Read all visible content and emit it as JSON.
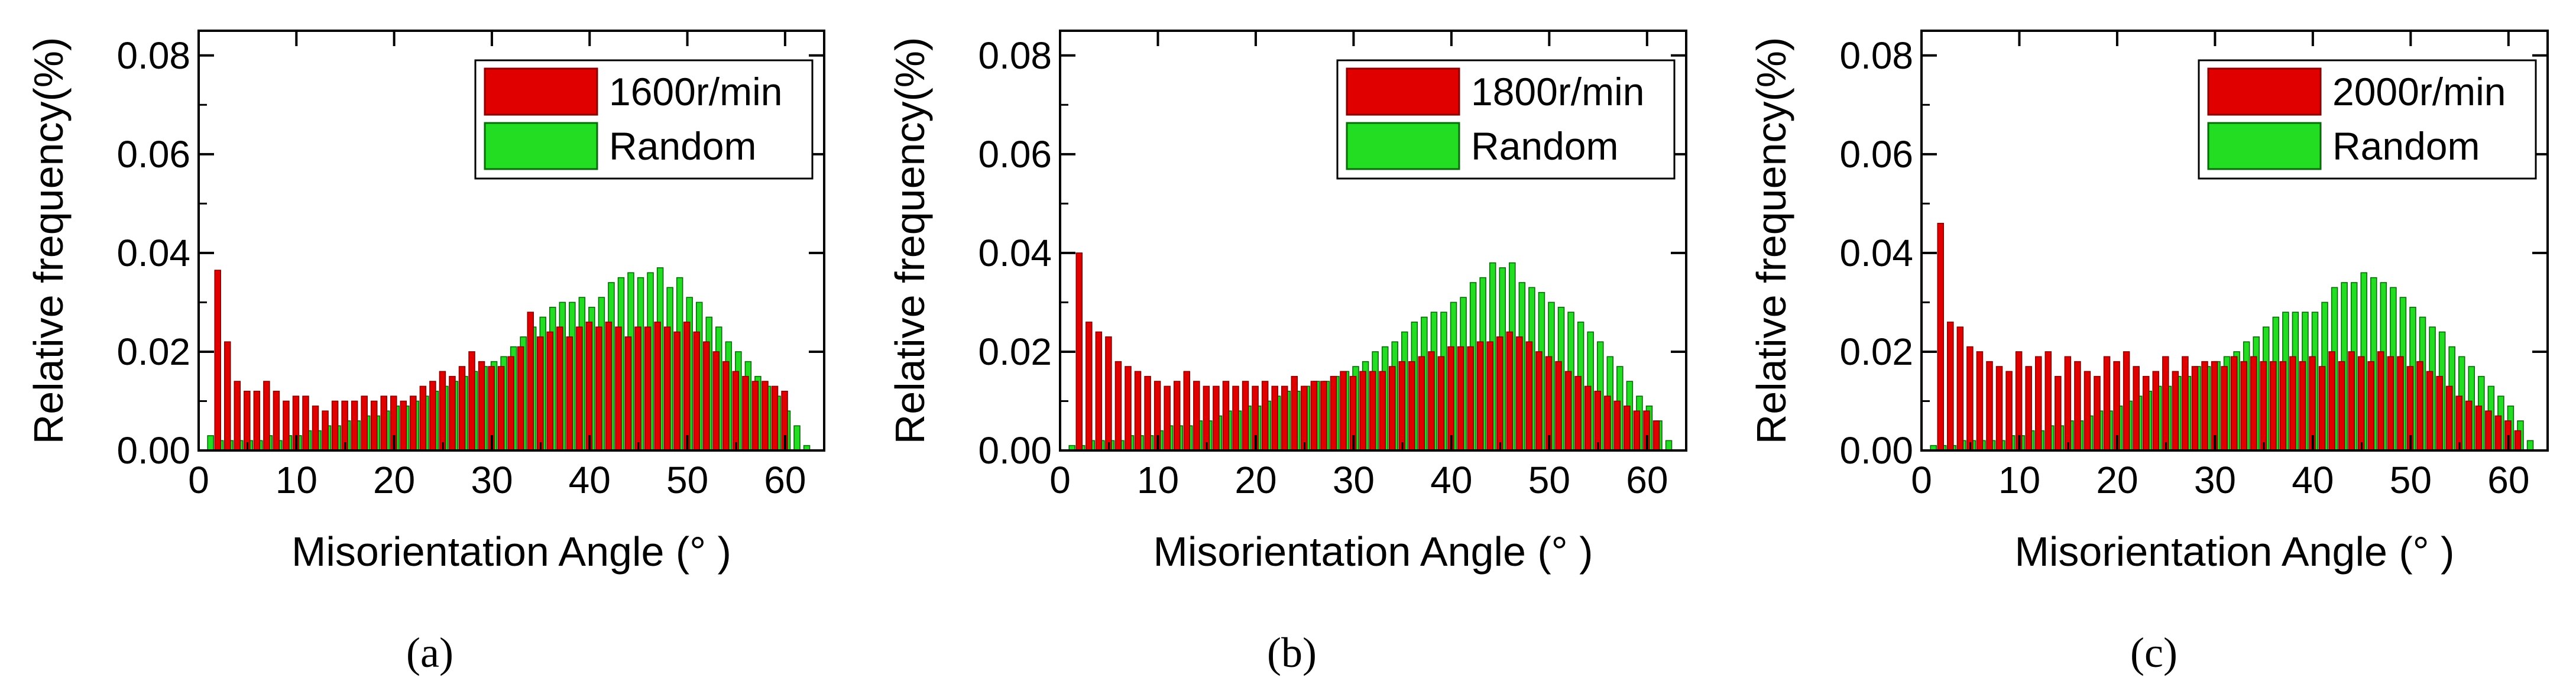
{
  "figure": {
    "panel_labels": [
      "(a)",
      "(b)",
      "(c)"
    ]
  },
  "colors": {
    "red_fill": "#e00000",
    "red_edge": "#8a0000",
    "green_fill": "#22dd22",
    "green_edge": "#0b6a0b",
    "axis": "#000000"
  },
  "chart_data": [
    {
      "type": "bar",
      "panel": "a",
      "xlabel": "Misorientation Angle (° )",
      "ylabel": "Relative frequency(%)",
      "xlim": [
        0,
        64
      ],
      "ylim": [
        0,
        0.085
      ],
      "xticks": [
        0,
        10,
        20,
        30,
        40,
        50,
        60
      ],
      "yticks": [
        0.0,
        0.02,
        0.04,
        0.06,
        0.08
      ],
      "ytick_labels": [
        "0.00",
        "0.02",
        "0.04",
        "0.06",
        "0.08"
      ],
      "bin_width": 1,
      "x": [
        1,
        2,
        3,
        4,
        5,
        6,
        7,
        8,
        9,
        10,
        11,
        12,
        13,
        14,
        15,
        16,
        17,
        18,
        19,
        20,
        21,
        22,
        23,
        24,
        25,
        26,
        27,
        28,
        29,
        30,
        31,
        32,
        33,
        34,
        35,
        36,
        37,
        38,
        39,
        40,
        41,
        42,
        43,
        44,
        45,
        46,
        47,
        48,
        49,
        50,
        51,
        52,
        53,
        54,
        55,
        56,
        57,
        58,
        59,
        60,
        61,
        62
      ],
      "legend": [
        "1600r/min",
        "Random"
      ],
      "series": [
        {
          "name": "1600r/min",
          "color": "red",
          "values": [
            0.0,
            0.0365,
            0.022,
            0.014,
            0.012,
            0.012,
            0.014,
            0.012,
            0.01,
            0.011,
            0.011,
            0.009,
            0.008,
            0.01,
            0.01,
            0.01,
            0.011,
            0.01,
            0.011,
            0.011,
            0.01,
            0.011,
            0.013,
            0.014,
            0.016,
            0.015,
            0.017,
            0.02,
            0.018,
            0.017,
            0.017,
            0.019,
            0.021,
            0.028,
            0.023,
            0.024,
            0.025,
            0.023,
            0.025,
            0.026,
            0.025,
            0.026,
            0.025,
            0.023,
            0.025,
            0.025,
            0.026,
            0.025,
            0.024,
            0.026,
            0.024,
            0.022,
            0.02,
            0.018,
            0.016,
            0.015,
            0.014,
            0.014,
            0.013,
            0.012,
            0.0,
            0.0
          ]
        },
        {
          "name": "Random",
          "color": "green",
          "values": [
            0.003,
            0.002,
            0.002,
            0.002,
            0.002,
            0.002,
            0.003,
            0.002,
            0.003,
            0.003,
            0.004,
            0.004,
            0.005,
            0.005,
            0.006,
            0.006,
            0.007,
            0.007,
            0.008,
            0.009,
            0.009,
            0.01,
            0.011,
            0.012,
            0.013,
            0.014,
            0.015,
            0.016,
            0.017,
            0.018,
            0.019,
            0.021,
            0.023,
            0.025,
            0.027,
            0.029,
            0.03,
            0.03,
            0.031,
            0.029,
            0.031,
            0.034,
            0.035,
            0.036,
            0.035,
            0.036,
            0.037,
            0.033,
            0.035,
            0.031,
            0.03,
            0.027,
            0.025,
            0.022,
            0.02,
            0.018,
            0.015,
            0.013,
            0.011,
            0.008,
            0.005,
            0.001
          ]
        }
      ]
    },
    {
      "type": "bar",
      "panel": "b",
      "xlabel": "Misorientation Angle (° )",
      "ylabel": "Relative frequency(%)",
      "xlim": [
        0,
        64
      ],
      "ylim": [
        0,
        0.085
      ],
      "xticks": [
        0,
        10,
        20,
        30,
        40,
        50,
        60
      ],
      "yticks": [
        0.0,
        0.02,
        0.04,
        0.06,
        0.08
      ],
      "ytick_labels": [
        "0.00",
        "0.02",
        "0.04",
        "0.06",
        "0.08"
      ],
      "bin_width": 1,
      "x": [
        1,
        2,
        3,
        4,
        5,
        6,
        7,
        8,
        9,
        10,
        11,
        12,
        13,
        14,
        15,
        16,
        17,
        18,
        19,
        20,
        21,
        22,
        23,
        24,
        25,
        26,
        27,
        28,
        29,
        30,
        31,
        32,
        33,
        34,
        35,
        36,
        37,
        38,
        39,
        40,
        41,
        42,
        43,
        44,
        45,
        46,
        47,
        48,
        49,
        50,
        51,
        52,
        53,
        54,
        55,
        56,
        57,
        58,
        59,
        60,
        61,
        62
      ],
      "legend": [
        "1800r/min",
        "Random"
      ],
      "series": [
        {
          "name": "1800r/min",
          "color": "red",
          "values": [
            0.0,
            0.04,
            0.026,
            0.024,
            0.023,
            0.018,
            0.017,
            0.016,
            0.015,
            0.014,
            0.013,
            0.014,
            0.016,
            0.014,
            0.013,
            0.013,
            0.014,
            0.013,
            0.014,
            0.013,
            0.014,
            0.013,
            0.013,
            0.015,
            0.013,
            0.014,
            0.014,
            0.015,
            0.016,
            0.015,
            0.016,
            0.016,
            0.016,
            0.017,
            0.018,
            0.018,
            0.019,
            0.02,
            0.019,
            0.021,
            0.021,
            0.021,
            0.022,
            0.022,
            0.023,
            0.024,
            0.023,
            0.022,
            0.02,
            0.019,
            0.018,
            0.016,
            0.015,
            0.013,
            0.012,
            0.011,
            0.01,
            0.009,
            0.008,
            0.008,
            0.006,
            0.0
          ]
        },
        {
          "name": "Random",
          "color": "green",
          "values": [
            0.001,
            0.001,
            0.002,
            0.002,
            0.002,
            0.002,
            0.003,
            0.003,
            0.003,
            0.004,
            0.005,
            0.005,
            0.005,
            0.006,
            0.006,
            0.007,
            0.008,
            0.008,
            0.009,
            0.009,
            0.01,
            0.011,
            0.012,
            0.012,
            0.013,
            0.014,
            0.014,
            0.015,
            0.016,
            0.017,
            0.018,
            0.02,
            0.021,
            0.022,
            0.024,
            0.026,
            0.027,
            0.028,
            0.028,
            0.03,
            0.031,
            0.034,
            0.035,
            0.038,
            0.037,
            0.038,
            0.034,
            0.033,
            0.032,
            0.03,
            0.029,
            0.028,
            0.026,
            0.024,
            0.022,
            0.019,
            0.017,
            0.014,
            0.011,
            0.009,
            0.006,
            0.002
          ]
        }
      ]
    },
    {
      "type": "bar",
      "panel": "c",
      "xlabel": "Misorientation Angle (° )",
      "ylabel": "Relative frequency(%)",
      "xlim": [
        0,
        64
      ],
      "ylim": [
        0,
        0.085
      ],
      "xticks": [
        0,
        10,
        20,
        30,
        40,
        50,
        60
      ],
      "yticks": [
        0.0,
        0.02,
        0.04,
        0.06,
        0.08
      ],
      "ytick_labels": [
        "0.00",
        "0.02",
        "0.04",
        "0.06",
        "0.08"
      ],
      "bin_width": 1,
      "x": [
        1,
        2,
        3,
        4,
        5,
        6,
        7,
        8,
        9,
        10,
        11,
        12,
        13,
        14,
        15,
        16,
        17,
        18,
        19,
        20,
        21,
        22,
        23,
        24,
        25,
        26,
        27,
        28,
        29,
        30,
        31,
        32,
        33,
        34,
        35,
        36,
        37,
        38,
        39,
        40,
        41,
        42,
        43,
        44,
        45,
        46,
        47,
        48,
        49,
        50,
        51,
        52,
        53,
        54,
        55,
        56,
        57,
        58,
        59,
        60,
        61,
        62
      ],
      "legend": [
        "2000r/min",
        "Random"
      ],
      "series": [
        {
          "name": "2000r/min",
          "color": "red",
          "values": [
            0.0,
            0.046,
            0.026,
            0.025,
            0.021,
            0.02,
            0.018,
            0.017,
            0.016,
            0.02,
            0.017,
            0.019,
            0.02,
            0.015,
            0.019,
            0.018,
            0.016,
            0.015,
            0.019,
            0.018,
            0.02,
            0.017,
            0.015,
            0.016,
            0.019,
            0.016,
            0.019,
            0.017,
            0.018,
            0.018,
            0.017,
            0.019,
            0.018,
            0.019,
            0.018,
            0.018,
            0.018,
            0.019,
            0.018,
            0.019,
            0.017,
            0.02,
            0.018,
            0.02,
            0.019,
            0.018,
            0.02,
            0.019,
            0.019,
            0.017,
            0.018,
            0.016,
            0.015,
            0.013,
            0.011,
            0.01,
            0.009,
            0.008,
            0.007,
            0.006,
            0.004,
            0.0
          ]
        },
        {
          "name": "Random",
          "color": "green",
          "values": [
            0.001,
            0.001,
            0.001,
            0.002,
            0.002,
            0.002,
            0.002,
            0.002,
            0.003,
            0.003,
            0.004,
            0.004,
            0.005,
            0.005,
            0.006,
            0.006,
            0.007,
            0.008,
            0.008,
            0.009,
            0.01,
            0.011,
            0.012,
            0.013,
            0.013,
            0.015,
            0.015,
            0.017,
            0.017,
            0.018,
            0.019,
            0.02,
            0.022,
            0.023,
            0.025,
            0.027,
            0.028,
            0.028,
            0.028,
            0.028,
            0.03,
            0.033,
            0.034,
            0.034,
            0.036,
            0.035,
            0.034,
            0.033,
            0.031,
            0.029,
            0.027,
            0.025,
            0.024,
            0.021,
            0.019,
            0.017,
            0.015,
            0.013,
            0.011,
            0.009,
            0.006,
            0.002
          ]
        }
      ]
    }
  ]
}
